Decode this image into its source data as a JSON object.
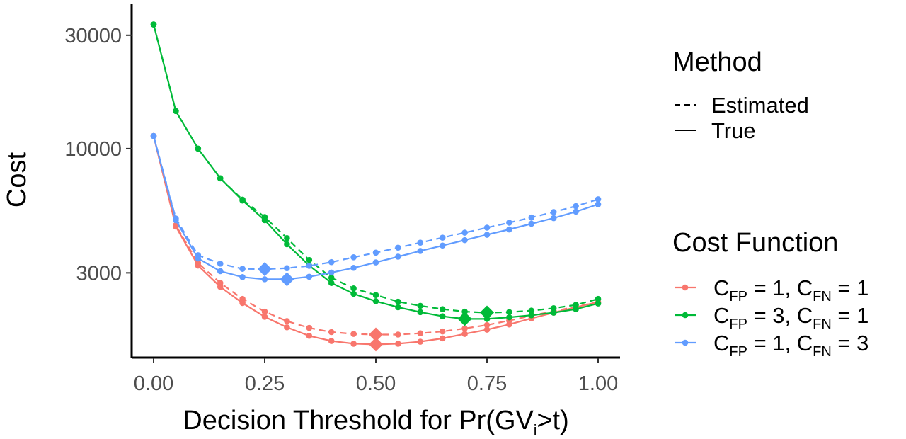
{
  "chart_data": {
    "type": "line",
    "xlabel": {
      "pre": "Decision Threshold for Pr(GV",
      "sub": "i",
      "post": ">t)"
    },
    "ylabel": "Cost",
    "x_ticks": [
      "0.00",
      "0.25",
      "0.50",
      "0.75",
      "1.00"
    ],
    "y_ticks": [
      "3000",
      "10000",
      "30000"
    ],
    "y_tick_values": [
      3000,
      10000,
      30000
    ],
    "xlim": [
      0,
      1
    ],
    "ylim": [
      1320,
      40800
    ],
    "y_scale": "log",
    "grid": false,
    "legend_placement": "right",
    "x": [
      0,
      0.05,
      0.1,
      0.15,
      0.2,
      0.25,
      0.3,
      0.35,
      0.4,
      0.45,
      0.5,
      0.55,
      0.6,
      0.65,
      0.7,
      0.75,
      0.8,
      0.85,
      0.9,
      0.95,
      1.0
    ],
    "method_legend": {
      "title": "Method",
      "entries": [
        {
          "label": "Estimated",
          "dash": "dashed"
        },
        {
          "label": "True",
          "dash": "solid"
        }
      ]
    },
    "cost_legend": {
      "title": "Cost Function",
      "entries": [
        {
          "color": "#F8766D",
          "cfp": "1",
          "cfn": "1"
        },
        {
          "color": "#00BA38",
          "cfp": "3",
          "cfn": "1"
        },
        {
          "color": "#619CFF",
          "cfp": "1",
          "cfn": "3"
        }
      ]
    },
    "series": [
      {
        "cost_function": "C_FP = 1, C_FN = 1",
        "method": "True",
        "color": "#F8766D",
        "dash": "solid",
        "values": [
          11300,
          4700,
          3220,
          2620,
          2240,
          1960,
          1770,
          1630,
          1550,
          1510,
          1500,
          1510,
          1540,
          1590,
          1660,
          1730,
          1820,
          1930,
          2040,
          2150,
          2260
        ],
        "optimum": {
          "x": 0.5,
          "y": 1500
        }
      },
      {
        "cost_function": "C_FP = 1, C_FN = 1",
        "method": "Estimated",
        "color": "#F8766D",
        "dash": "dashed",
        "values": [
          11300,
          4760,
          3300,
          2720,
          2330,
          2060,
          1880,
          1760,
          1690,
          1660,
          1650,
          1650,
          1670,
          1700,
          1750,
          1810,
          1890,
          1980,
          2070,
          2160,
          2260
        ],
        "optimum": {
          "x": 0.5,
          "y": 1650
        }
      },
      {
        "cost_function": "C_FP = 3, C_FN = 1",
        "method": "True",
        "color": "#00BA38",
        "dash": "solid",
        "values": [
          33300,
          14400,
          10000,
          7500,
          6050,
          5000,
          3960,
          3220,
          2720,
          2450,
          2280,
          2150,
          2050,
          1970,
          1920,
          1920,
          1950,
          1990,
          2040,
          2110,
          2230
        ],
        "optimum": {
          "x": 0.7,
          "y": 1920
        }
      },
      {
        "cost_function": "C_FP = 3, C_FN = 1",
        "method": "Estimated",
        "color": "#00BA38",
        "dash": "dashed",
        "values": [
          33300,
          14400,
          10000,
          7500,
          6100,
          5150,
          4200,
          3400,
          2860,
          2580,
          2420,
          2270,
          2180,
          2110,
          2060,
          2040,
          2050,
          2080,
          2130,
          2200,
          2330
        ],
        "optimum": {
          "x": 0.75,
          "y": 2040
        }
      },
      {
        "cost_function": "C_FP = 1, C_FN = 3",
        "method": "True",
        "color": "#619CFF",
        "dash": "solid",
        "values": [
          11300,
          5000,
          3450,
          3050,
          2880,
          2820,
          2820,
          2890,
          3010,
          3150,
          3320,
          3510,
          3710,
          3910,
          4120,
          4340,
          4570,
          4830,
          5100,
          5430,
          5830
        ],
        "optimum": {
          "x": 0.3,
          "y": 2820
        }
      },
      {
        "cost_function": "C_FP = 1, C_FN = 3",
        "method": "Estimated",
        "color": "#619CFF",
        "dash": "dashed",
        "values": [
          11300,
          5080,
          3560,
          3280,
          3120,
          3110,
          3140,
          3210,
          3330,
          3490,
          3650,
          3830,
          4020,
          4220,
          4430,
          4650,
          4880,
          5130,
          5410,
          5730,
          6120
        ],
        "optimum": {
          "x": 0.25,
          "y": 3110
        }
      }
    ]
  }
}
